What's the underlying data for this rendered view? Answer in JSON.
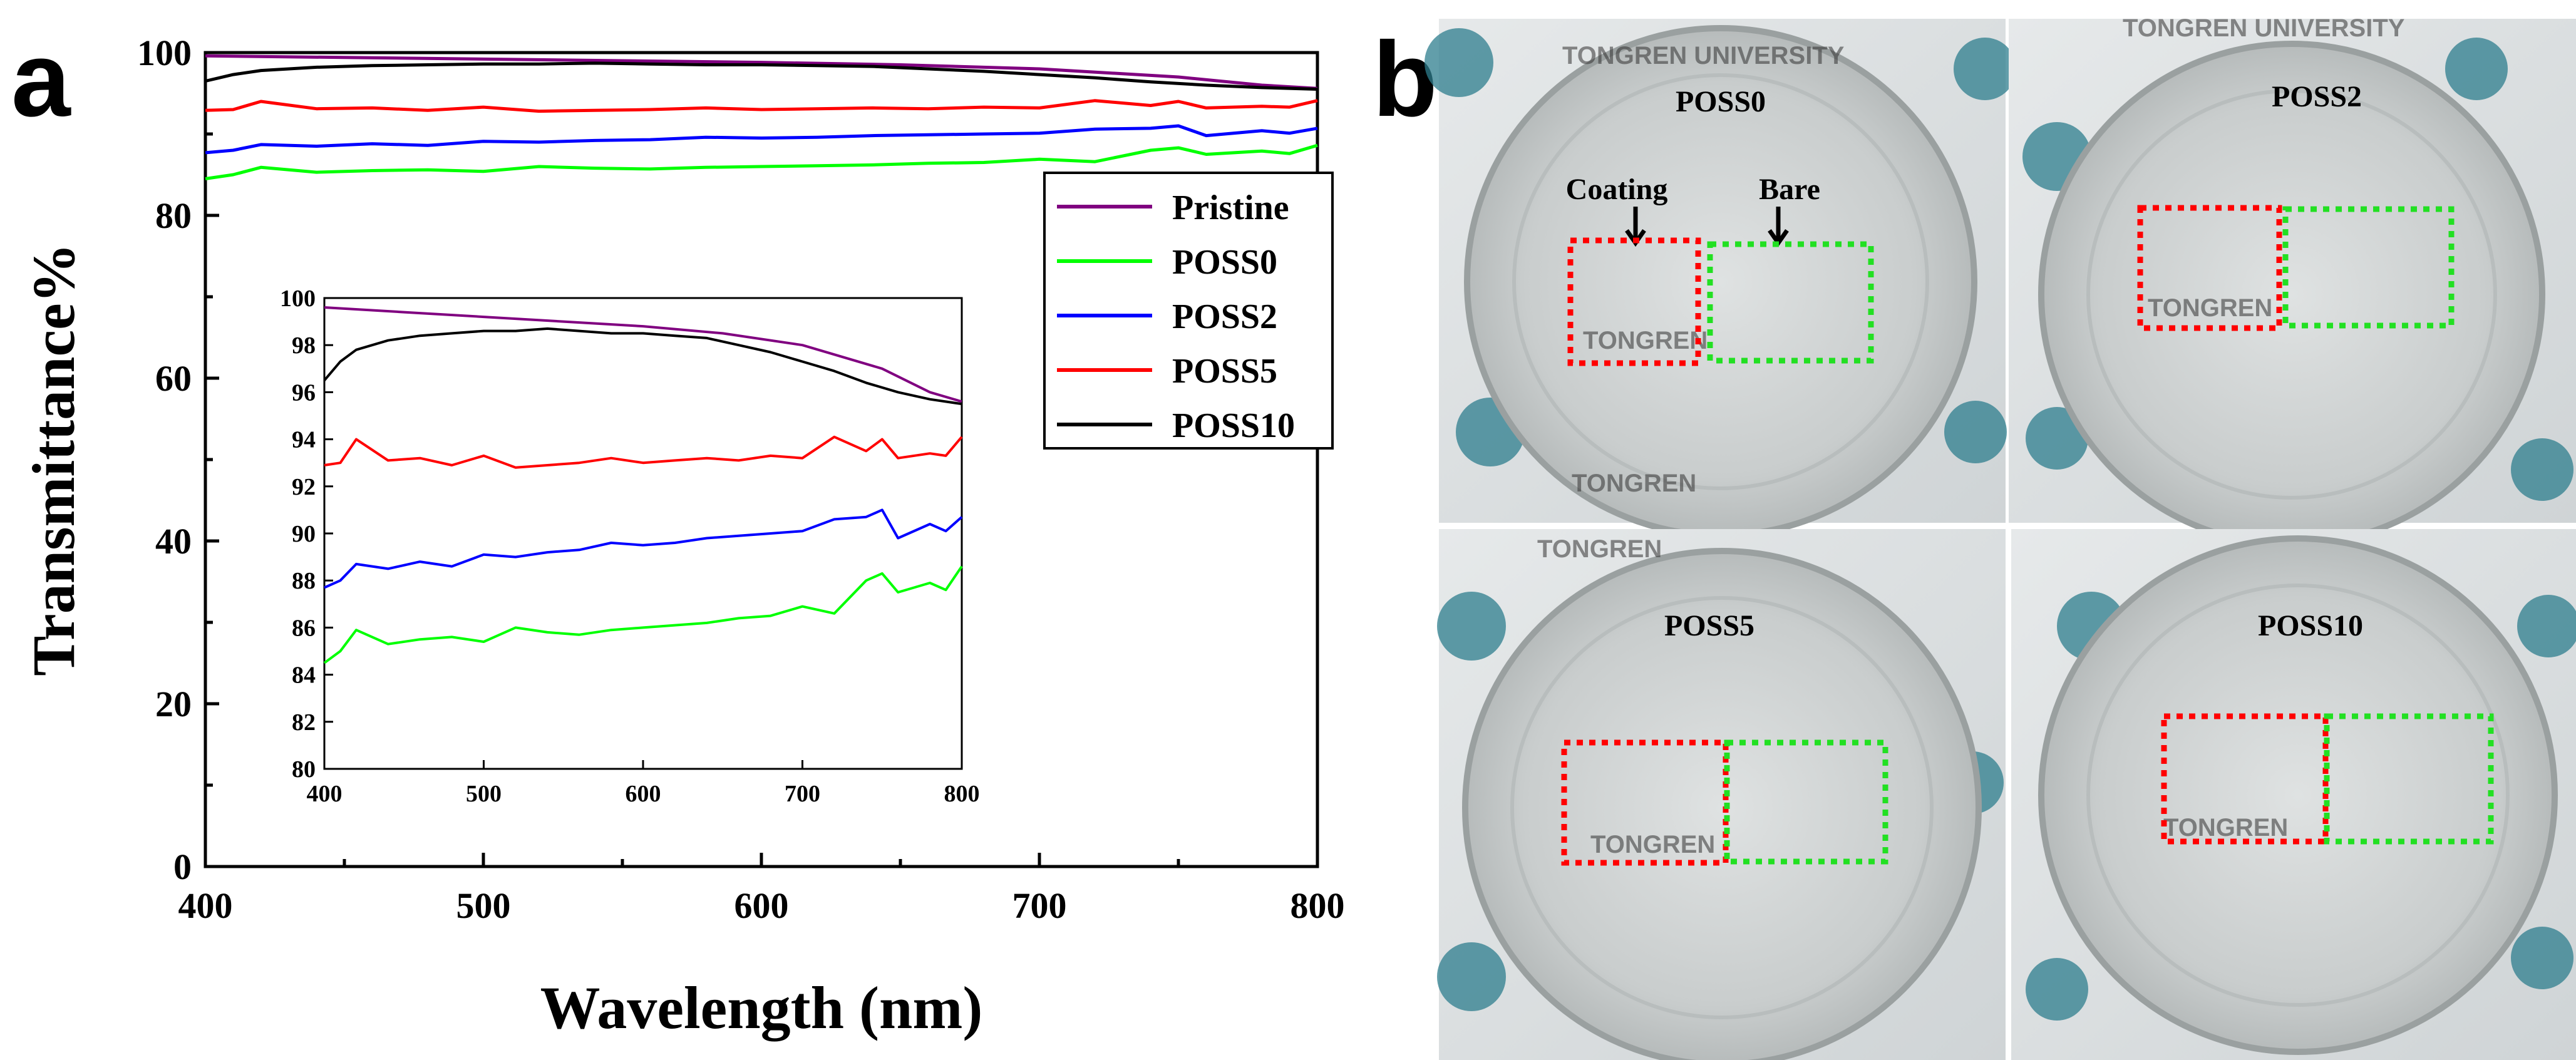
{
  "panel_a": {
    "letter": "a"
  },
  "panel_b": {
    "letter": "b",
    "photos": [
      {
        "label": "POSS0",
        "annotation_coating": "Coating",
        "annotation_bare": "Bare",
        "watermark_texts": [
          "TONGREN",
          "TONGREN UNIVERSITY"
        ]
      },
      {
        "label": "POSS2",
        "watermark_texts": [
          "TONGREN UNIVERSITY",
          "TONGREN"
        ]
      },
      {
        "label": "POSS5",
        "watermark_texts": [
          "TONGREN",
          "TONGREN"
        ]
      },
      {
        "label": "POSS10",
        "watermark_texts": [
          "TONGREN"
        ]
      }
    ],
    "colors": {
      "coating_box": "#ff0000",
      "bare_box": "#22e022"
    }
  },
  "chart_data": [
    {
      "type": "line",
      "xlabel": "Wavelength (nm)",
      "ylabel": "Transmittance%",
      "xlim": [
        400,
        800
      ],
      "ylim": [
        0,
        100
      ],
      "xticks": [
        400,
        500,
        600,
        700,
        800
      ],
      "yticks": [
        0,
        20,
        40,
        60,
        80,
        100
      ],
      "legend_position": "right",
      "series": [
        {
          "name": "Pristine",
          "color": "#800080",
          "x": [
            400,
            450,
            500,
            550,
            600,
            650,
            700,
            750,
            780,
            800
          ],
          "y": [
            99.6,
            99.4,
            99.2,
            99.0,
            98.8,
            98.5,
            98.0,
            97.0,
            96.0,
            95.6
          ]
        },
        {
          "name": "POSS0",
          "color": "#00ff00",
          "x": [
            400,
            410,
            420,
            440,
            460,
            480,
            500,
            520,
            540,
            560,
            580,
            600,
            620,
            640,
            660,
            680,
            700,
            720,
            740,
            750,
            760,
            780,
            790,
            800
          ],
          "y": [
            84.5,
            85.0,
            85.9,
            85.3,
            85.5,
            85.6,
            85.4,
            86.0,
            85.8,
            85.7,
            85.9,
            86.0,
            86.1,
            86.2,
            86.4,
            86.5,
            86.9,
            86.6,
            88.0,
            88.3,
            87.5,
            87.9,
            87.6,
            88.6
          ]
        },
        {
          "name": "POSS2",
          "color": "#0000ff",
          "x": [
            400,
            410,
            420,
            440,
            460,
            480,
            500,
            520,
            540,
            560,
            580,
            600,
            620,
            640,
            660,
            680,
            700,
            720,
            740,
            750,
            760,
            780,
            790,
            800
          ],
          "y": [
            87.7,
            88.0,
            88.7,
            88.5,
            88.8,
            88.6,
            89.1,
            89.0,
            89.2,
            89.3,
            89.6,
            89.5,
            89.6,
            89.8,
            89.9,
            90.0,
            90.1,
            90.6,
            90.7,
            91.0,
            89.8,
            90.4,
            90.1,
            90.7
          ]
        },
        {
          "name": "POSS5",
          "color": "#ff0000",
          "x": [
            400,
            410,
            420,
            440,
            460,
            480,
            500,
            520,
            540,
            560,
            580,
            600,
            620,
            640,
            660,
            680,
            700,
            720,
            740,
            750,
            760,
            780,
            790,
            800
          ],
          "y": [
            92.9,
            93.0,
            94.0,
            93.1,
            93.2,
            92.9,
            93.3,
            92.8,
            92.9,
            93.0,
            93.2,
            93.0,
            93.1,
            93.2,
            93.1,
            93.3,
            93.2,
            94.1,
            93.5,
            94.0,
            93.2,
            93.4,
            93.3,
            94.1
          ]
        },
        {
          "name": "POSS10",
          "color": "#000000",
          "x": [
            400,
            410,
            420,
            440,
            460,
            480,
            500,
            520,
            540,
            560,
            580,
            600,
            620,
            640,
            660,
            680,
            700,
            720,
            740,
            760,
            780,
            800
          ],
          "y": [
            96.5,
            97.3,
            97.8,
            98.2,
            98.4,
            98.5,
            98.6,
            98.6,
            98.7,
            98.6,
            98.5,
            98.5,
            98.4,
            98.3,
            98.0,
            97.7,
            97.3,
            96.9,
            96.4,
            96.0,
            95.7,
            95.5
          ]
        }
      ]
    },
    {
      "type": "line",
      "xlim": [
        400,
        800
      ],
      "ylim": [
        80,
        100
      ],
      "xticks": [
        400,
        500,
        600,
        700,
        800
      ],
      "yticks": [
        80,
        82,
        84,
        86,
        88,
        90,
        92,
        94,
        96,
        98,
        100
      ],
      "series": [
        {
          "name": "Pristine",
          "color": "#800080",
          "x": [
            400,
            450,
            500,
            550,
            600,
            650,
            700,
            750,
            780,
            800
          ],
          "y": [
            99.6,
            99.4,
            99.2,
            99.0,
            98.8,
            98.5,
            98.0,
            97.0,
            96.0,
            95.6
          ]
        },
        {
          "name": "POSS0",
          "color": "#00ff00",
          "x": [
            400,
            410,
            420,
            440,
            460,
            480,
            500,
            520,
            540,
            560,
            580,
            600,
            620,
            640,
            660,
            680,
            700,
            720,
            740,
            750,
            760,
            780,
            790,
            800
          ],
          "y": [
            84.5,
            85.0,
            85.9,
            85.3,
            85.5,
            85.6,
            85.4,
            86.0,
            85.8,
            85.7,
            85.9,
            86.0,
            86.1,
            86.2,
            86.4,
            86.5,
            86.9,
            86.6,
            88.0,
            88.3,
            87.5,
            87.9,
            87.6,
            88.6
          ]
        },
        {
          "name": "POSS2",
          "color": "#0000ff",
          "x": [
            400,
            410,
            420,
            440,
            460,
            480,
            500,
            520,
            540,
            560,
            580,
            600,
            620,
            640,
            660,
            680,
            700,
            720,
            740,
            750,
            760,
            780,
            790,
            800
          ],
          "y": [
            87.7,
            88.0,
            88.7,
            88.5,
            88.8,
            88.6,
            89.1,
            89.0,
            89.2,
            89.3,
            89.6,
            89.5,
            89.6,
            89.8,
            89.9,
            90.0,
            90.1,
            90.6,
            90.7,
            91.0,
            89.8,
            90.4,
            90.1,
            90.7
          ]
        },
        {
          "name": "POSS5",
          "color": "#ff0000",
          "x": [
            400,
            410,
            420,
            440,
            460,
            480,
            500,
            520,
            540,
            560,
            580,
            600,
            620,
            640,
            660,
            680,
            700,
            720,
            740,
            750,
            760,
            780,
            790,
            800
          ],
          "y": [
            92.9,
            93.0,
            94.0,
            93.1,
            93.2,
            92.9,
            93.3,
            92.8,
            92.9,
            93.0,
            93.2,
            93.0,
            93.1,
            93.2,
            93.1,
            93.3,
            93.2,
            94.1,
            93.5,
            94.0,
            93.2,
            93.4,
            93.3,
            94.1
          ]
        },
        {
          "name": "POSS10",
          "color": "#000000",
          "x": [
            400,
            410,
            420,
            440,
            460,
            480,
            500,
            520,
            540,
            560,
            580,
            600,
            620,
            640,
            660,
            680,
            700,
            720,
            740,
            760,
            780,
            800
          ],
          "y": [
            96.5,
            97.3,
            97.8,
            98.2,
            98.4,
            98.5,
            98.6,
            98.6,
            98.7,
            98.6,
            98.5,
            98.5,
            98.4,
            98.3,
            98.0,
            97.7,
            97.3,
            96.9,
            96.4,
            96.0,
            95.7,
            95.5
          ]
        }
      ]
    }
  ]
}
